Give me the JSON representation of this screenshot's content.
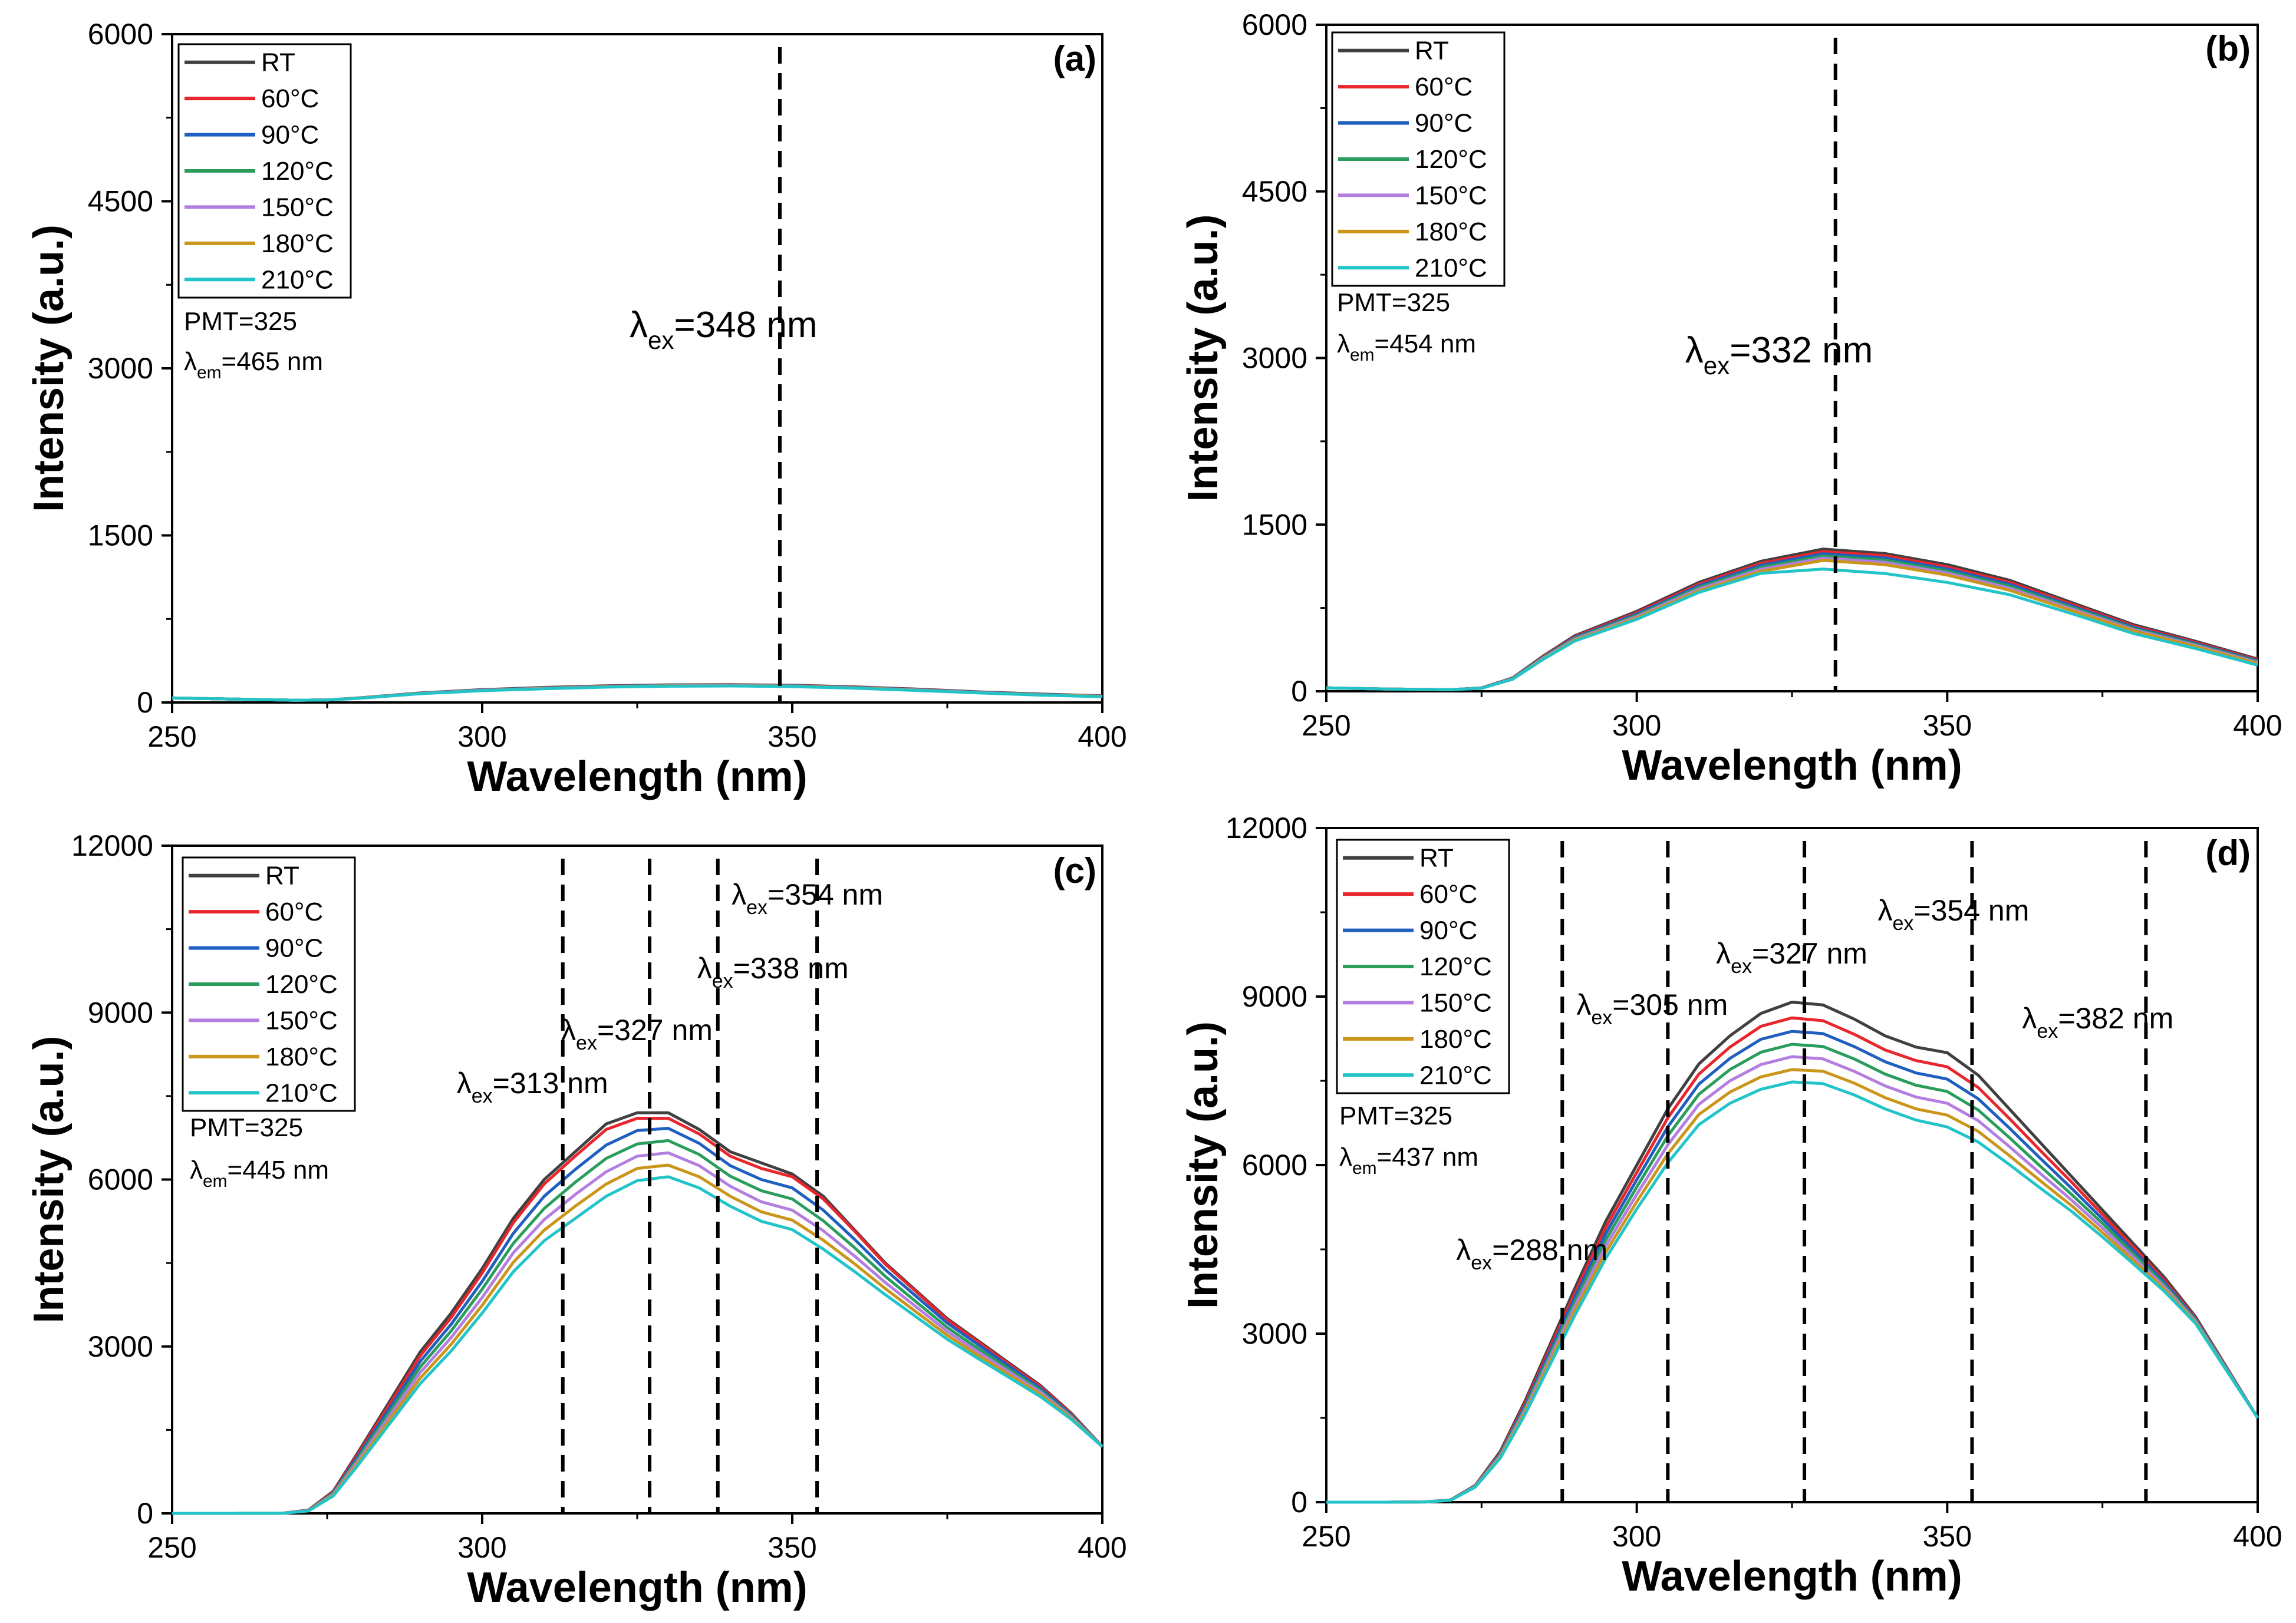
{
  "chart_data": [
    {
      "type": "line",
      "panel": "(a)",
      "xlabel": "Wavelength (nm)",
      "ylabel": "Intensity (a.u.)",
      "xlim": [
        250,
        400
      ],
      "ylim": [
        0,
        6000
      ],
      "xticks": [
        "250",
        "300",
        "350",
        "400"
      ],
      "yticks": [
        "0",
        "1500",
        "3000",
        "4500",
        "6000"
      ],
      "legend": [
        "RT",
        "60°C",
        "90°C",
        "120°C",
        "150°C",
        "180°C",
        "210°C"
      ],
      "notes": [
        {
          "main": "PMT=325"
        },
        {
          "main": "λ",
          "sub": "em",
          "rest": "=465 nm"
        }
      ],
      "annotations": [
        {
          "main": "λ",
          "sub": "ex",
          "rest": "=348 nm",
          "x": 348,
          "large": true
        }
      ],
      "x": [
        250,
        260,
        270,
        275,
        280,
        290,
        300,
        310,
        320,
        330,
        340,
        350,
        360,
        370,
        380,
        390,
        400
      ],
      "series": [
        {
          "name": "RT",
          "values": [
            40,
            30,
            20,
            22,
            40,
            85,
            115,
            135,
            150,
            158,
            160,
            155,
            140,
            120,
            95,
            75,
            60
          ]
        },
        {
          "name": "60°C",
          "values": [
            40,
            30,
            20,
            22,
            40,
            84,
            113,
            133,
            148,
            156,
            158,
            153,
            138,
            118,
            93,
            73,
            58
          ]
        },
        {
          "name": "90°C",
          "values": [
            40,
            30,
            20,
            22,
            39,
            83,
            112,
            131,
            146,
            154,
            156,
            151,
            136,
            116,
            92,
            72,
            57
          ]
        },
        {
          "name": "120°C",
          "values": [
            40,
            30,
            20,
            22,
            39,
            82,
            110,
            129,
            144,
            152,
            154,
            149,
            134,
            114,
            90,
            70,
            56
          ]
        },
        {
          "name": "150°C",
          "values": [
            40,
            30,
            20,
            22,
            38,
            81,
            109,
            127,
            142,
            150,
            152,
            147,
            132,
            112,
            89,
            69,
            55
          ]
        },
        {
          "name": "180°C",
          "values": [
            40,
            30,
            20,
            22,
            38,
            80,
            107,
            125,
            140,
            148,
            150,
            145,
            130,
            110,
            87,
            68,
            54
          ]
        },
        {
          "name": "210°C",
          "values": [
            40,
            30,
            20,
            22,
            37,
            79,
            106,
            123,
            138,
            146,
            148,
            143,
            128,
            108,
            86,
            66,
            52
          ]
        }
      ]
    },
    {
      "type": "line",
      "panel": "(b)",
      "xlabel": "Wavelength (nm)",
      "ylabel": "Intensity (a.u.)",
      "xlim": [
        250,
        400
      ],
      "ylim": [
        0,
        6000
      ],
      "xticks": [
        "250",
        "300",
        "350",
        "400"
      ],
      "yticks": [
        "0",
        "1500",
        "3000",
        "4500",
        "6000"
      ],
      "legend": [
        "RT",
        "60°C",
        "90°C",
        "120°C",
        "150°C",
        "180°C",
        "210°C"
      ],
      "notes": [
        {
          "main": "PMT=325"
        },
        {
          "main": "λ",
          "sub": "em",
          "rest": "=454 nm"
        }
      ],
      "annotations": [
        {
          "main": "λ",
          "sub": "ex",
          "rest": "=332 nm",
          "x": 332,
          "large": true
        }
      ],
      "x": [
        250,
        260,
        270,
        275,
        280,
        285,
        290,
        300,
        310,
        320,
        330,
        340,
        350,
        360,
        370,
        380,
        390,
        400
      ],
      "series": [
        {
          "name": "RT",
          "values": [
            30,
            20,
            15,
            30,
            120,
            320,
            500,
            720,
            980,
            1170,
            1280,
            1240,
            1140,
            1000,
            800,
            600,
            450,
            290
          ]
        },
        {
          "name": "60°C",
          "values": [
            30,
            20,
            15,
            29,
            118,
            315,
            492,
            708,
            965,
            1152,
            1258,
            1220,
            1120,
            982,
            785,
            588,
            440,
            282
          ]
        },
        {
          "name": "90°C",
          "values": [
            30,
            20,
            15,
            29,
            116,
            310,
            484,
            696,
            950,
            1134,
            1238,
            1200,
            1100,
            964,
            770,
            576,
            430,
            274
          ]
        },
        {
          "name": "120°C",
          "values": [
            30,
            20,
            15,
            28,
            114,
            305,
            476,
            684,
            935,
            1116,
            1218,
            1180,
            1082,
            946,
            756,
            565,
            421,
            266
          ]
        },
        {
          "name": "150°C",
          "values": [
            30,
            20,
            15,
            28,
            112,
            300,
            468,
            672,
            920,
            1098,
            1198,
            1160,
            1064,
            928,
            742,
            554,
            412,
            258
          ]
        },
        {
          "name": "180°C",
          "values": [
            30,
            20,
            15,
            27,
            110,
            295,
            460,
            660,
            905,
            1080,
            1178,
            1140,
            1046,
            910,
            728,
            543,
            403,
            250
          ]
        },
        {
          "name": "210°C",
          "values": [
            30,
            20,
            15,
            27,
            108,
            290,
            452,
            648,
            890,
            1062,
            1100,
            1060,
            980,
            870,
            700,
            520,
            385,
            235
          ]
        }
      ]
    },
    {
      "type": "line",
      "panel": "(c)",
      "xlabel": "Wavelength (nm)",
      "ylabel": "Intensity (a.u.)",
      "xlim": [
        250,
        400
      ],
      "ylim": [
        0,
        12000
      ],
      "xticks": [
        "250",
        "300",
        "350",
        "400"
      ],
      "yticks": [
        "0",
        "3000",
        "6000",
        "9000",
        "12000"
      ],
      "legend": [
        "RT",
        "60°C",
        "90°C",
        "120°C",
        "150°C",
        "180°C",
        "210°C"
      ],
      "notes": [
        {
          "main": "PMT=325"
        },
        {
          "main": "λ",
          "sub": "em",
          "rest": "=445 nm"
        }
      ],
      "annotations": [
        {
          "main": "λ",
          "sub": "ex",
          "rest": "=313 nm",
          "x": 313
        },
        {
          "main": "λ",
          "sub": "ex",
          "rest": "=327 nm",
          "x": 327
        },
        {
          "main": "λ",
          "sub": "ex",
          "rest": "=338 nm",
          "x": 338
        },
        {
          "main": "λ",
          "sub": "ex",
          "rest": "=354 nm",
          "x": 354
        }
      ],
      "x": [
        250,
        260,
        268,
        272,
        276,
        280,
        285,
        290,
        295,
        300,
        305,
        310,
        315,
        320,
        325,
        330,
        335,
        340,
        345,
        350,
        355,
        360,
        365,
        370,
        375,
        380,
        385,
        390,
        395,
        400
      ],
      "series": [
        {
          "name": "RT",
          "values": [
            0,
            0,
            5,
            60,
            400,
            1100,
            2000,
            2900,
            3600,
            4400,
            5300,
            6000,
            6500,
            7000,
            7200,
            7200,
            6900,
            6500,
            6300,
            6100,
            5700,
            5100,
            4500,
            4000,
            3500,
            3100,
            2700,
            2300,
            1800,
            1200
          ]
        },
        {
          "name": "60°C",
          "values": [
            0,
            0,
            5,
            60,
            390,
            1070,
            1950,
            2830,
            3520,
            4320,
            5220,
            5920,
            6420,
            6900,
            7100,
            7100,
            6820,
            6420,
            6200,
            6050,
            5650,
            5080,
            4480,
            3980,
            3480,
            3080,
            2680,
            2280,
            1790,
            1200
          ]
        },
        {
          "name": "90°C",
          "values": [
            0,
            0,
            5,
            55,
            375,
            1030,
            1880,
            2730,
            3400,
            4170,
            5030,
            5700,
            6180,
            6620,
            6880,
            6920,
            6650,
            6250,
            6000,
            5850,
            5450,
            4930,
            4380,
            3900,
            3420,
            3030,
            2640,
            2250,
            1770,
            1200
          ]
        },
        {
          "name": "120°C",
          "values": [
            0,
            0,
            5,
            52,
            360,
            990,
            1810,
            2630,
            3280,
            4030,
            4850,
            5480,
            5950,
            6380,
            6640,
            6700,
            6450,
            6060,
            5800,
            5650,
            5260,
            4780,
            4260,
            3800,
            3340,
            2960,
            2590,
            2210,
            1750,
            1200
          ]
        },
        {
          "name": "150°C",
          "values": [
            0,
            0,
            5,
            50,
            345,
            950,
            1740,
            2530,
            3160,
            3880,
            4680,
            5280,
            5730,
            6140,
            6420,
            6480,
            6250,
            5880,
            5600,
            5450,
            5080,
            4630,
            4150,
            3710,
            3270,
            2900,
            2540,
            2180,
            1730,
            1200
          ]
        },
        {
          "name": "180°C",
          "values": [
            0,
            0,
            4,
            47,
            330,
            910,
            1670,
            2430,
            3040,
            3740,
            4510,
            5090,
            5520,
            5920,
            6200,
            6260,
            6050,
            5700,
            5420,
            5270,
            4910,
            4490,
            4040,
            3620,
            3200,
            2840,
            2490,
            2140,
            1710,
            1200
          ]
        },
        {
          "name": "210°C",
          "values": [
            0,
            0,
            4,
            45,
            315,
            870,
            1600,
            2330,
            2920,
            3600,
            4340,
            4900,
            5300,
            5700,
            5980,
            6050,
            5850,
            5520,
            5250,
            5100,
            4750,
            4350,
            3930,
            3530,
            3130,
            2780,
            2440,
            2100,
            1690,
            1200
          ]
        }
      ]
    },
    {
      "type": "line",
      "panel": "(d)",
      "xlabel": "Wavelength (nm)",
      "ylabel": "Intensity (a.u.)",
      "xlim": [
        250,
        400
      ],
      "ylim": [
        0,
        12000
      ],
      "xticks": [
        "250",
        "300",
        "350",
        "400"
      ],
      "yticks": [
        "0",
        "3000",
        "6000",
        "9000",
        "12000"
      ],
      "legend": [
        "RT",
        "60°C",
        "90°C",
        "120°C",
        "150°C",
        "180°C",
        "210°C"
      ],
      "notes": [
        {
          "main": "PMT=325"
        },
        {
          "main": "λ",
          "sub": "em",
          "rest": "=437 nm"
        }
      ],
      "annotations": [
        {
          "main": "λ",
          "sub": "ex",
          "rest": "=288 nm",
          "x": 288
        },
        {
          "main": "λ",
          "sub": "ex",
          "rest": "=305 nm",
          "x": 305
        },
        {
          "main": "λ",
          "sub": "ex",
          "rest": "=327 nm",
          "x": 327
        },
        {
          "main": "λ",
          "sub": "ex",
          "rest": "=354 nm",
          "x": 354
        },
        {
          "main": "λ",
          "sub": "ex",
          "rest": "=382 nm",
          "x": 382
        }
      ],
      "x": [
        250,
        260,
        266,
        270,
        274,
        278,
        282,
        286,
        290,
        295,
        300,
        305,
        310,
        315,
        320,
        325,
        330,
        335,
        340,
        345,
        350,
        355,
        360,
        365,
        370,
        375,
        380,
        385,
        390,
        395,
        400
      ],
      "series": [
        {
          "name": "RT",
          "values": [
            0,
            0,
            5,
            40,
            300,
            900,
            1800,
            2800,
            3800,
            5000,
            6000,
            7000,
            7800,
            8300,
            8700,
            8900,
            8850,
            8600,
            8300,
            8100,
            8000,
            7600,
            7000,
            6400,
            5800,
            5200,
            4600,
            4000,
            3300,
            2400,
            1500
          ]
        },
        {
          "name": "60°C",
          "values": [
            0,
            0,
            5,
            40,
            295,
            880,
            1760,
            2740,
            3720,
            4890,
            5870,
            6840,
            7620,
            8100,
            8470,
            8620,
            8570,
            8330,
            8050,
            7860,
            7750,
            7380,
            6830,
            6260,
            5700,
            5120,
            4540,
            3950,
            3280,
            2390,
            1500
          ]
        },
        {
          "name": "90°C",
          "values": [
            0,
            0,
            5,
            38,
            290,
            860,
            1720,
            2680,
            3640,
            4780,
            5740,
            6680,
            7440,
            7900,
            8240,
            8380,
            8340,
            8110,
            7840,
            7640,
            7530,
            7180,
            6660,
            6120,
            5590,
            5040,
            4480,
            3910,
            3260,
            2380,
            1500
          ]
        },
        {
          "name": "120°C",
          "values": [
            0,
            0,
            5,
            37,
            285,
            840,
            1680,
            2620,
            3560,
            4670,
            5610,
            6520,
            7260,
            7700,
            8010,
            8150,
            8110,
            7890,
            7620,
            7420,
            7310,
            6980,
            6490,
            5980,
            5480,
            4960,
            4420,
            3870,
            3240,
            2370,
            1500
          ]
        },
        {
          "name": "150°C",
          "values": [
            0,
            0,
            4,
            36,
            280,
            820,
            1640,
            2560,
            3480,
            4560,
            5480,
            6360,
            7080,
            7500,
            7790,
            7930,
            7890,
            7670,
            7410,
            7210,
            7100,
            6790,
            6330,
            5850,
            5380,
            4880,
            4360,
            3830,
            3220,
            2360,
            1500
          ]
        },
        {
          "name": "180°C",
          "values": [
            0,
            0,
            4,
            35,
            275,
            800,
            1600,
            2500,
            3400,
            4450,
            5350,
            6200,
            6900,
            7300,
            7570,
            7700,
            7670,
            7460,
            7200,
            7000,
            6890,
            6600,
            6170,
            5720,
            5280,
            4800,
            4300,
            3790,
            3200,
            2350,
            1500
          ]
        },
        {
          "name": "210°C",
          "values": [
            0,
            0,
            4,
            34,
            270,
            780,
            1560,
            2440,
            3320,
            4340,
            5220,
            6040,
            6720,
            7100,
            7350,
            7480,
            7450,
            7250,
            7000,
            6800,
            6680,
            6410,
            6010,
            5590,
            5180,
            4720,
            4240,
            3750,
            3180,
            2340,
            1500
          ]
        }
      ]
    }
  ],
  "series_colors": [
    "#404040",
    "#e8262d",
    "#1f5fbf",
    "#2a9d5c",
    "#b47ee0",
    "#c9961a",
    "#22c4c9"
  ]
}
